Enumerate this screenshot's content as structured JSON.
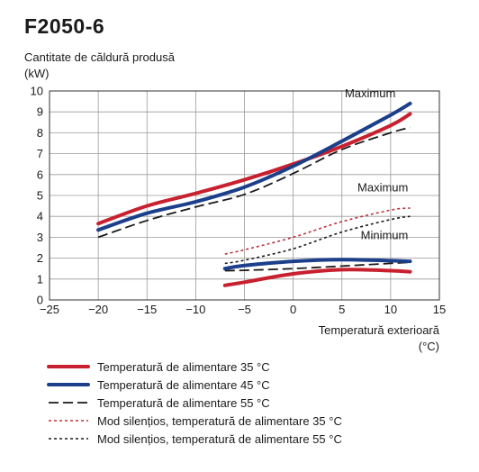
{
  "chart_data": {
    "type": "line",
    "title": "F2050-6",
    "ylabel_line1": "Cantitate de căldură produsă",
    "ylabel_line2": "(kW)",
    "xlabel_line1": "Temperatură exterioară",
    "xlabel_line2": "(°C)",
    "xlim": [
      -25,
      15
    ],
    "ylim": [
      0,
      10
    ],
    "xticks": [
      -25,
      -20,
      -15,
      -10,
      -5,
      0,
      5,
      10,
      15
    ],
    "yticks": [
      0,
      1,
      2,
      3,
      4,
      5,
      6,
      7,
      8,
      9,
      10
    ],
    "grid": true,
    "annotations": [
      {
        "text": "Maximum",
        "x": 10.5,
        "y": 9.7
      },
      {
        "text": "Maximum",
        "x": 11.8,
        "y": 5.2
      },
      {
        "text": "Minimum",
        "x": 11.8,
        "y": 2.9
      }
    ],
    "series": [
      {
        "name": "Temperatură de alimentare 35 °C",
        "group": "max",
        "color": "#c8202f",
        "style": "thick",
        "x": [
          -20,
          -15,
          -10,
          -5,
          0,
          5,
          10,
          12
        ],
        "y": [
          3.65,
          4.5,
          5.1,
          5.75,
          6.5,
          7.35,
          8.35,
          8.9
        ]
      },
      {
        "name": "Temperatură de alimentare 45 °C",
        "group": "max",
        "color": "#1b3f8b",
        "style": "thick",
        "x": [
          -20,
          -15,
          -10,
          -5,
          0,
          5,
          10,
          12
        ],
        "y": [
          3.35,
          4.15,
          4.7,
          5.4,
          6.4,
          7.6,
          8.85,
          9.4
        ]
      },
      {
        "name": "Temperatură de alimentare 55 °C",
        "group": "max",
        "color": "#1a1a1a",
        "style": "dashed",
        "x": [
          -20,
          -15,
          -10,
          -5,
          0,
          5,
          10,
          12
        ],
        "y": [
          3.0,
          3.8,
          4.45,
          5.05,
          6.05,
          7.2,
          8.0,
          8.25
        ]
      },
      {
        "name": "Temperatură de alimentare 35 °C",
        "group": "min",
        "color": "#c8202f",
        "style": "thick",
        "x": [
          -7,
          -5,
          0,
          5,
          10,
          12
        ],
        "y": [
          0.7,
          0.85,
          1.25,
          1.45,
          1.4,
          1.35
        ]
      },
      {
        "name": "Temperatură de alimentare 45 °C",
        "group": "min",
        "color": "#1b3f8b",
        "style": "thick",
        "x": [
          -7,
          -5,
          0,
          5,
          10,
          12
        ],
        "y": [
          1.5,
          1.65,
          1.85,
          1.93,
          1.88,
          1.85
        ]
      },
      {
        "name": "Temperatură de alimentare 55 °C",
        "group": "min",
        "color": "#1a1a1a",
        "style": "dashed",
        "x": [
          -7,
          -5,
          0,
          5,
          10,
          12
        ],
        "y": [
          1.4,
          1.42,
          1.5,
          1.62,
          1.75,
          1.8
        ]
      },
      {
        "name": "Mod silențios, temperatură de alimentare 35 °C",
        "group": "silent",
        "color": "#b8333b",
        "style": "dotted",
        "x": [
          -7,
          -5,
          0,
          5,
          10,
          12
        ],
        "y": [
          2.2,
          2.4,
          3.0,
          3.75,
          4.3,
          4.4
        ]
      },
      {
        "name": "Mod silențios, temperatură de alimentare 55 °C",
        "group": "silent",
        "color": "#1a1a1a",
        "style": "dotted",
        "x": [
          -7,
          -5,
          0,
          5,
          10,
          12
        ],
        "y": [
          1.75,
          1.9,
          2.45,
          3.25,
          3.85,
          4.0
        ]
      }
    ],
    "legend": [
      {
        "label": "Temperatură de alimentare 35 °C",
        "color": "#c8202f",
        "style": "thick"
      },
      {
        "label": "Temperatură de alimentare 45 °C",
        "color": "#1b3f8b",
        "style": "thick"
      },
      {
        "label": "Temperatură de alimentare 55 °C",
        "color": "#1a1a1a",
        "style": "dashed"
      },
      {
        "label": "Mod silențios, temperatură de alimentare 35 °C",
        "color": "#b8333b",
        "style": "dotted"
      },
      {
        "label": "Mod silențios, temperatură de alimentare 55 °C",
        "color": "#1a1a1a",
        "style": "dotted"
      }
    ]
  }
}
